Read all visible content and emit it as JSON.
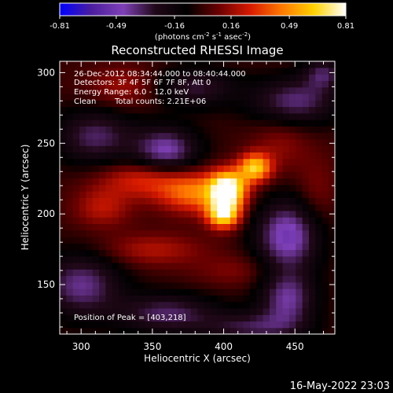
{
  "chart_data": {
    "type": "heatmap",
    "title": "Reconstructed RHESSI Image",
    "xlabel": "Heliocentric X (arcsec)",
    "ylabel": "Heliocentric Y (arcsec)",
    "xlim": [
      285,
      478
    ],
    "ylim": [
      115,
      308
    ],
    "x_ticks": [
      "300",
      "350",
      "400",
      "450"
    ],
    "y_ticks": [
      "150",
      "200",
      "250",
      "300"
    ],
    "x_tick_values": [
      300,
      350,
      400,
      450
    ],
    "y_tick_values": [
      150,
      200,
      250,
      300
    ],
    "colorbar": {
      "min_label": "-0.81",
      "max_label": "0.81",
      "tick_labels": [
        "-0.81",
        "-0.49",
        "-0.16",
        "0.16",
        "0.49",
        "0.81"
      ],
      "tick_values": [
        -0.81,
        -0.49,
        -0.16,
        0.16,
        0.49,
        0.81
      ],
      "unit_parts": [
        "(photons cm",
        "-2",
        " s",
        "-1",
        " asec",
        "-2",
        ")"
      ],
      "colors": [
        "#0000ff",
        "#4b1e9e",
        "#7f40b6",
        "#200818",
        "#000000",
        "#6a0000",
        "#d81a00",
        "#ff7a00",
        "#ffd200",
        "#ffffff"
      ]
    },
    "annotations": [
      "26-Dec-2012 08:34:44.000 to 08:40:44.000",
      "Detectors: 3F 4F 5F 6F 7F 8F, Att 0",
      "Energy Range: 6.0 - 12.0 keV",
      "Clean",
      "Total counts: 2.21E+06"
    ],
    "peak_label": "Position of Peak = [403,218]",
    "peak": [
      403,
      218
    ],
    "sources": [
      {
        "x": 403,
        "y": 218,
        "amp": 0.81,
        "sx": 9,
        "sy": 9
      },
      {
        "x": 400,
        "y": 200,
        "amp": 0.7,
        "sx": 8,
        "sy": 7
      },
      {
        "x": 422,
        "y": 233,
        "amp": 0.62,
        "sx": 8,
        "sy": 7
      },
      {
        "x": 380,
        "y": 215,
        "amp": 0.42,
        "sx": 18,
        "sy": 10
      },
      {
        "x": 345,
        "y": 225,
        "amp": 0.3,
        "sx": 22,
        "sy": 9
      },
      {
        "x": 315,
        "y": 205,
        "amp": 0.22,
        "sx": 14,
        "sy": 10
      },
      {
        "x": 350,
        "y": 175,
        "amp": 0.2,
        "sx": 25,
        "sy": 8
      },
      {
        "x": 410,
        "y": 160,
        "amp": 0.12,
        "sx": 22,
        "sy": 8
      },
      {
        "x": 330,
        "y": 290,
        "amp": 0.18,
        "sx": 18,
        "sy": 10
      },
      {
        "x": 440,
        "y": 250,
        "amp": 0.14,
        "sx": 14,
        "sy": 14
      },
      {
        "x": 465,
        "y": 215,
        "amp": 0.12,
        "sx": 10,
        "sy": 18
      },
      {
        "x": 360,
        "y": 245,
        "amp": -0.45,
        "sx": 16,
        "sy": 12
      },
      {
        "x": 445,
        "y": 185,
        "amp": -0.5,
        "sx": 16,
        "sy": 18
      },
      {
        "x": 310,
        "y": 255,
        "amp": -0.35,
        "sx": 20,
        "sy": 14
      },
      {
        "x": 300,
        "y": 150,
        "amp": -0.4,
        "sx": 20,
        "sy": 16
      },
      {
        "x": 360,
        "y": 130,
        "amp": -0.35,
        "sx": 25,
        "sy": 10
      },
      {
        "x": 445,
        "y": 140,
        "amp": -0.4,
        "sx": 14,
        "sy": 14
      },
      {
        "x": 450,
        "y": 280,
        "amp": -0.38,
        "sx": 22,
        "sy": 12
      },
      {
        "x": 380,
        "y": 290,
        "amp": -0.3,
        "sx": 20,
        "sy": 10
      },
      {
        "x": 420,
        "y": 120,
        "amp": -0.3,
        "sx": 25,
        "sy": 8
      },
      {
        "x": 470,
        "y": 300,
        "amp": -0.3,
        "sx": 10,
        "sy": 8
      }
    ]
  },
  "footer": {
    "timestamp": "16-May-2022 23:03"
  }
}
